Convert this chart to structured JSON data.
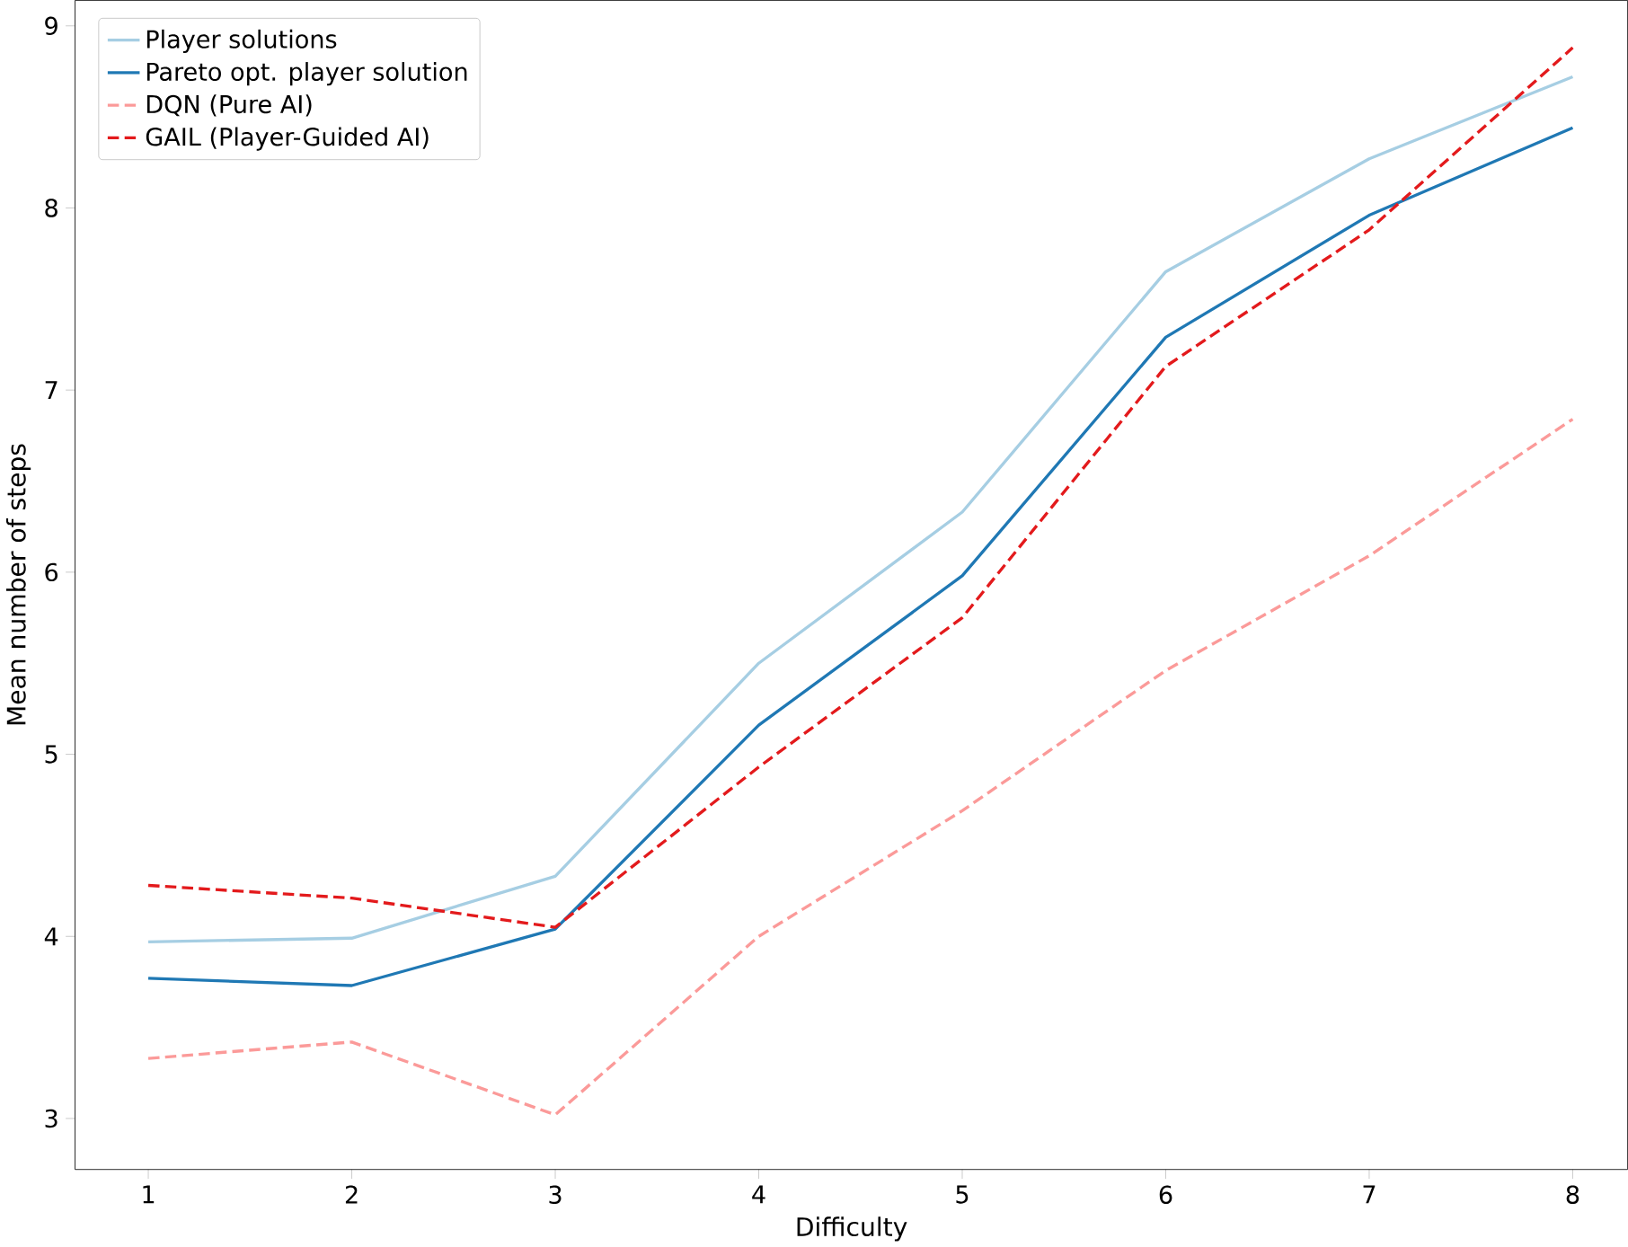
{
  "chart_data": {
    "type": "line",
    "xlabel": "Difficulty",
    "ylabel": "Mean number of steps",
    "x": [
      1,
      2,
      3,
      4,
      5,
      6,
      7,
      8
    ],
    "xlim": [
      0.64,
      8.27
    ],
    "ylim": [
      2.72,
      9.14
    ],
    "xticks": [
      1,
      2,
      3,
      4,
      5,
      6,
      7,
      8
    ],
    "yticks": [
      3,
      4,
      5,
      6,
      7,
      8,
      9
    ],
    "grid": false,
    "legend": "top left",
    "marker": "none",
    "series": [
      {
        "name": "Player solutions",
        "color": "#a6cee3",
        "line_style": "solid",
        "values": [
          3.97,
          3.99,
          4.33,
          5.5,
          6.33,
          7.65,
          8.27,
          8.72
        ]
      },
      {
        "name": "Pareto opt. player solution",
        "color": "#1f78b4",
        "line_style": "solid",
        "values": [
          3.77,
          3.73,
          4.04,
          5.16,
          5.98,
          7.29,
          7.96,
          8.44
        ]
      },
      {
        "name": "DQN (Pure AI)",
        "color": "#fb9a99",
        "line_style": "dashed",
        "values": [
          3.33,
          3.42,
          3.02,
          4.0,
          4.69,
          5.46,
          6.09,
          6.84
        ]
      },
      {
        "name": "GAIL (Player-Guided AI)",
        "color": "#e31a1c",
        "line_style": "dashed",
        "values": [
          4.28,
          4.21,
          4.05,
          4.93,
          5.75,
          7.13,
          7.88,
          8.88
        ]
      }
    ]
  }
}
